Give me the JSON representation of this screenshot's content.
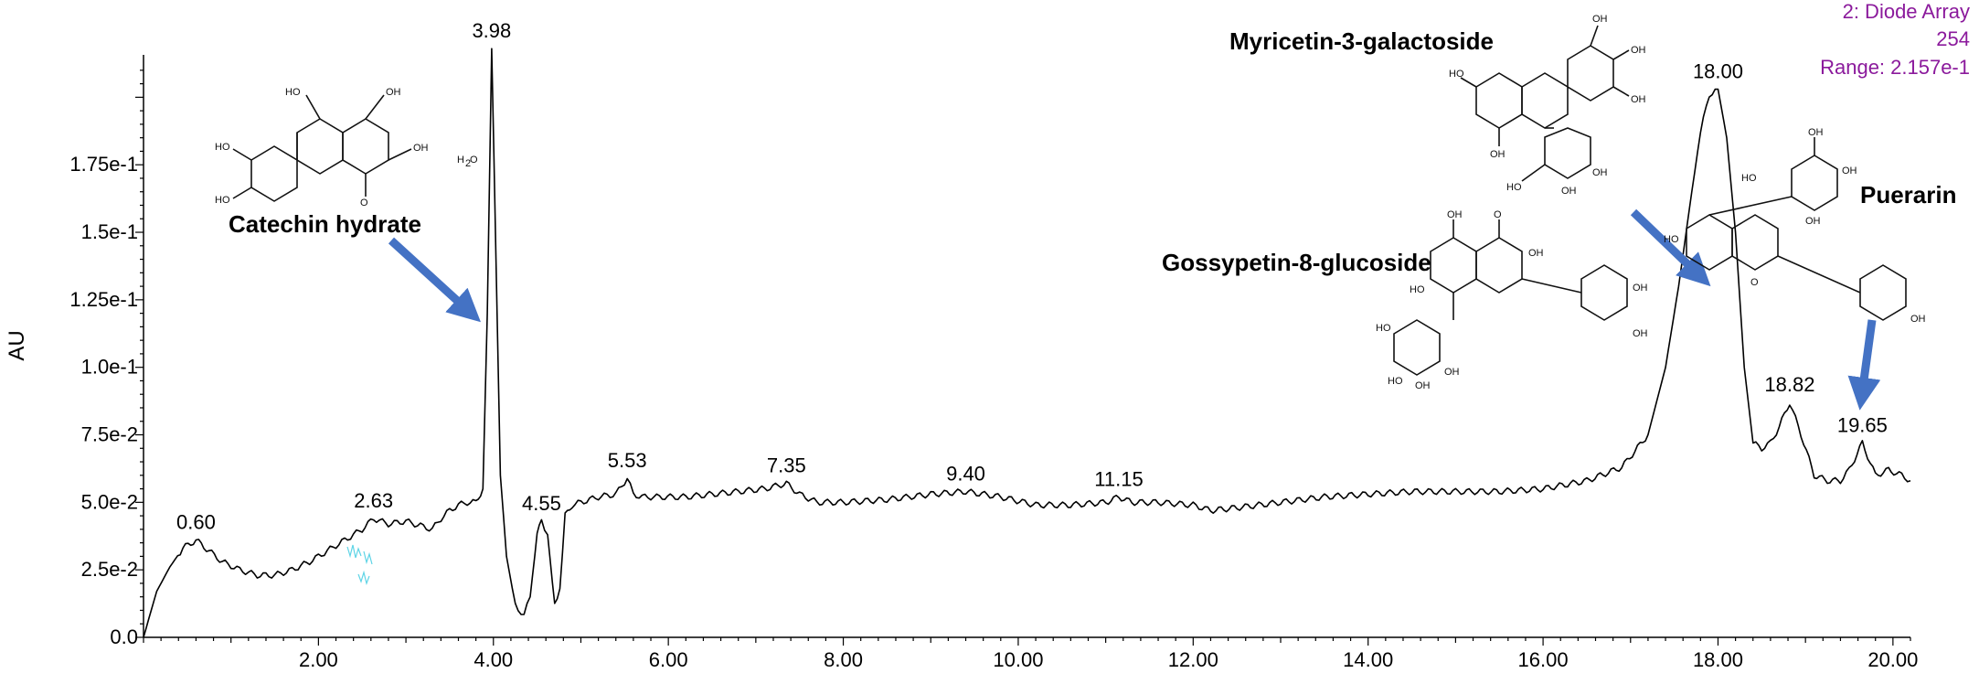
{
  "chart_data": {
    "type": "line",
    "title": "",
    "xlabel": "",
    "ylabel": "AU",
    "xlim": [
      0,
      20.2
    ],
    "ylim": [
      0,
      0.2157
    ],
    "x_ticks": [
      "2.00",
      "4.00",
      "6.00",
      "8.00",
      "10.00",
      "12.00",
      "14.00",
      "16.00",
      "18.00",
      "20.00"
    ],
    "y_ticks": [
      "0.0",
      "2.5e-2",
      "5.0e-2",
      "7.5e-2",
      "1.0e-1",
      "1.25e-1",
      "1.5e-1",
      "1.75e-1"
    ],
    "detector": {
      "line1": "2: Diode Array",
      "line2": "254",
      "line3": "Range: 2.157e-1"
    },
    "series": [
      {
        "x": [
          0.0,
          0.15,
          0.3,
          0.45,
          0.6,
          0.75,
          0.9,
          1.1,
          1.3,
          1.5,
          1.7,
          1.9,
          2.1,
          2.3,
          2.5,
          2.63,
          2.8,
          3.0,
          3.2,
          3.3,
          3.4,
          3.5,
          3.6,
          3.7,
          3.8,
          3.88,
          3.93,
          3.98,
          4.03,
          4.08,
          4.15,
          4.25,
          4.35,
          4.42,
          4.5,
          4.55,
          4.62,
          4.7,
          4.76,
          4.82,
          4.9,
          5.0,
          5.2,
          5.4,
          5.53,
          5.6,
          5.7,
          5.9,
          6.2,
          6.5,
          6.8,
          7.1,
          7.35,
          7.5,
          7.7,
          8.0,
          8.5,
          9.0,
          9.4,
          9.8,
          10.2,
          10.6,
          11.0,
          11.15,
          11.3,
          11.6,
          12.0,
          12.2,
          12.5,
          13.0,
          13.5,
          14.0,
          14.5,
          15.0,
          15.5,
          16.0,
          16.5,
          16.9,
          17.2,
          17.4,
          17.55,
          17.7,
          17.8,
          17.9,
          18.0,
          18.1,
          18.2,
          18.3,
          18.4,
          18.5,
          18.6,
          18.7,
          18.82,
          18.95,
          19.1,
          19.25,
          19.4,
          19.5,
          19.65,
          19.8,
          19.95,
          20.1,
          20.2
        ],
        "y": [
          0.0,
          0.017,
          0.026,
          0.033,
          0.036,
          0.032,
          0.028,
          0.025,
          0.023,
          0.023,
          0.025,
          0.028,
          0.032,
          0.036,
          0.04,
          0.044,
          0.042,
          0.043,
          0.041,
          0.04,
          0.044,
          0.047,
          0.049,
          0.05,
          0.05,
          0.055,
          0.12,
          0.218,
          0.14,
          0.06,
          0.03,
          0.012,
          0.008,
          0.015,
          0.038,
          0.043,
          0.038,
          0.012,
          0.018,
          0.045,
          0.049,
          0.05,
          0.052,
          0.053,
          0.059,
          0.053,
          0.052,
          0.052,
          0.052,
          0.053,
          0.054,
          0.055,
          0.057,
          0.053,
          0.05,
          0.05,
          0.051,
          0.053,
          0.054,
          0.052,
          0.049,
          0.049,
          0.05,
          0.052,
          0.05,
          0.05,
          0.049,
          0.047,
          0.048,
          0.05,
          0.052,
          0.053,
          0.054,
          0.054,
          0.054,
          0.055,
          0.058,
          0.063,
          0.075,
          0.1,
          0.13,
          0.165,
          0.187,
          0.201,
          0.203,
          0.185,
          0.15,
          0.1,
          0.072,
          0.07,
          0.072,
          0.078,
          0.087,
          0.075,
          0.06,
          0.058,
          0.058,
          0.062,
          0.072,
          0.06,
          0.062,
          0.06,
          0.058
        ]
      }
    ],
    "peak_labels": [
      {
        "x": 0.6,
        "y": 0.036,
        "text": "0.60"
      },
      {
        "x": 2.63,
        "y": 0.044,
        "text": "2.63"
      },
      {
        "x": 3.98,
        "y": 0.218,
        "text": "3.98"
      },
      {
        "x": 4.55,
        "y": 0.043,
        "text": "4.55"
      },
      {
        "x": 5.53,
        "y": 0.059,
        "text": "5.53"
      },
      {
        "x": 7.35,
        "y": 0.057,
        "text": "7.35"
      },
      {
        "x": 9.4,
        "y": 0.054,
        "text": "9.40"
      },
      {
        "x": 11.15,
        "y": 0.052,
        "text": "11.15"
      },
      {
        "x": 18.0,
        "y": 0.203,
        "text": "18.00"
      },
      {
        "x": 18.82,
        "y": 0.087,
        "text": "18.82"
      },
      {
        "x": 19.65,
        "y": 0.072,
        "text": "19.65"
      }
    ],
    "annotations": [
      {
        "name": "catechin",
        "text": "Catechin hydrate"
      },
      {
        "name": "myricetin",
        "text": "Myricetin-3-galactoside"
      },
      {
        "name": "gossypetin",
        "text": "Gossypetin-8-glucoside"
      },
      {
        "name": "puerarin",
        "text": "Puerarin"
      }
    ],
    "colors": {
      "line": "#000000",
      "arrow": "#4472C4",
      "info": "#8B1A9C",
      "noise": "#5ED4E6"
    }
  }
}
